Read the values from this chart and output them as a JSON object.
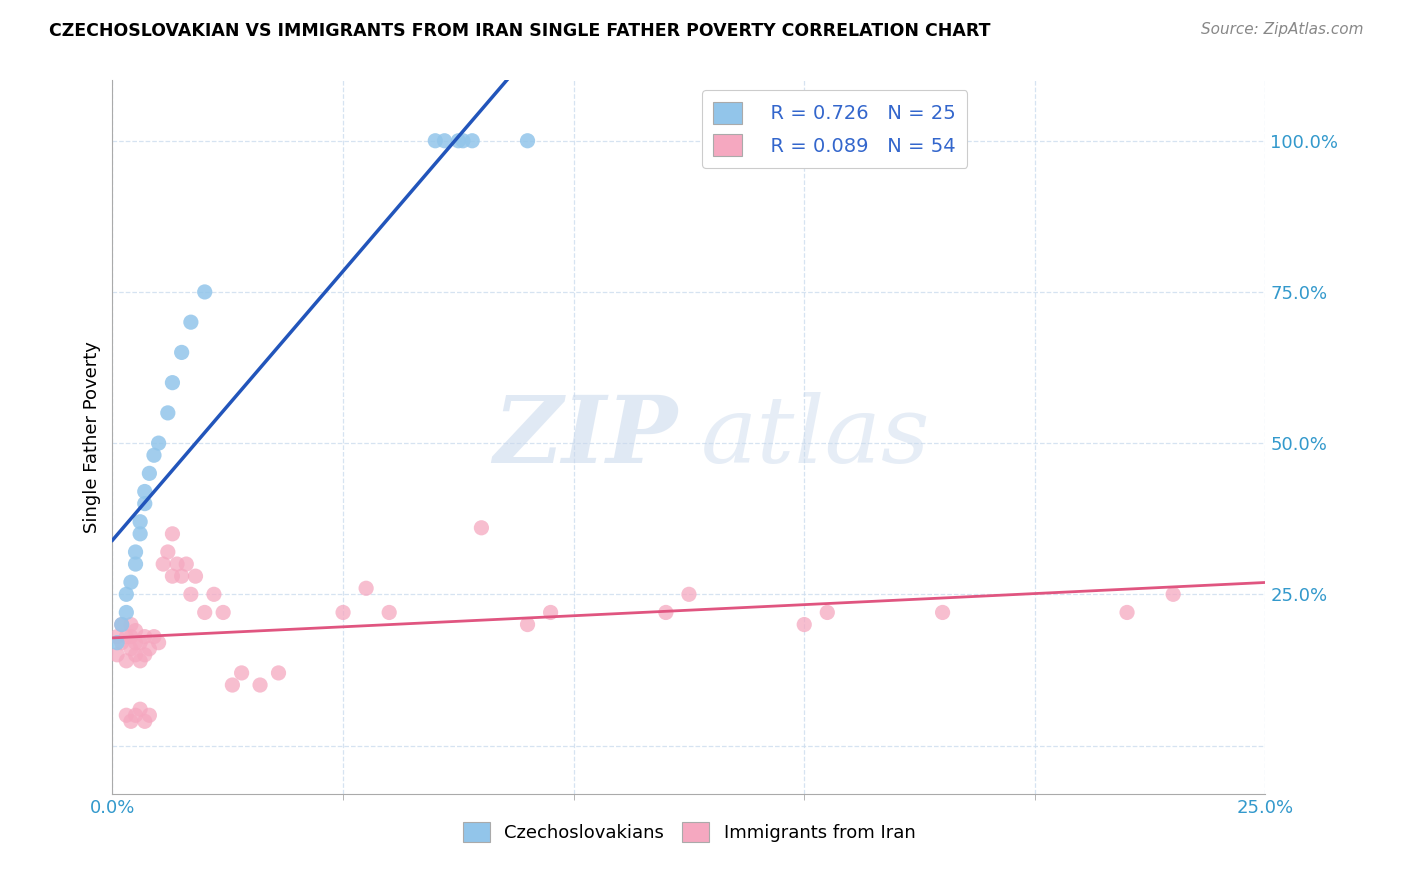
{
  "title": "CZECHOSLOVAKIAN VS IMMIGRANTS FROM IRAN SINGLE FATHER POVERTY CORRELATION CHART",
  "source": "Source: ZipAtlas.com",
  "ylabel": "Single Father Poverty",
  "ytick_labels": [
    "",
    "25.0%",
    "50.0%",
    "75.0%",
    "100.0%"
  ],
  "ytick_positions": [
    0.0,
    0.25,
    0.5,
    0.75,
    1.0
  ],
  "xrange": [
    0,
    0.25
  ],
  "yrange": [
    -0.08,
    1.1
  ],
  "legend1_R": "R = 0.726",
  "legend1_N": "N = 25",
  "legend2_R": "R = 0.089",
  "legend2_N": "N = 54",
  "blue_color": "#92C5EA",
  "pink_color": "#F5A8C0",
  "blue_line_color": "#2255BB",
  "pink_line_color": "#E05580",
  "watermark_zip": "ZIP",
  "watermark_atlas": "atlas",
  "blue_x": [
    0.001,
    0.002,
    0.003,
    0.003,
    0.004,
    0.005,
    0.005,
    0.006,
    0.006,
    0.007,
    0.007,
    0.008,
    0.009,
    0.01,
    0.012,
    0.013,
    0.015,
    0.017,
    0.02,
    0.07,
    0.072,
    0.075,
    0.076,
    0.078,
    0.09
  ],
  "blue_y": [
    0.17,
    0.2,
    0.22,
    0.25,
    0.27,
    0.3,
    0.32,
    0.35,
    0.37,
    0.4,
    0.42,
    0.45,
    0.48,
    0.5,
    0.55,
    0.6,
    0.65,
    0.7,
    0.75,
    1.0,
    1.0,
    1.0,
    1.0,
    1.0,
    1.0
  ],
  "pink_x": [
    0.001,
    0.001,
    0.002,
    0.002,
    0.003,
    0.003,
    0.004,
    0.004,
    0.004,
    0.005,
    0.005,
    0.005,
    0.006,
    0.006,
    0.007,
    0.007,
    0.008,
    0.009,
    0.01,
    0.011,
    0.012,
    0.013,
    0.013,
    0.014,
    0.015,
    0.016,
    0.017,
    0.018,
    0.02,
    0.022,
    0.024,
    0.026,
    0.028,
    0.032,
    0.036,
    0.05,
    0.055,
    0.06,
    0.08,
    0.09,
    0.095,
    0.12,
    0.125,
    0.15,
    0.155,
    0.18,
    0.22,
    0.23,
    0.003,
    0.004,
    0.005,
    0.006,
    0.007,
    0.008
  ],
  "pink_y": [
    0.15,
    0.18,
    0.17,
    0.2,
    0.14,
    0.18,
    0.16,
    0.18,
    0.2,
    0.15,
    0.17,
    0.19,
    0.14,
    0.17,
    0.15,
    0.18,
    0.16,
    0.18,
    0.17,
    0.3,
    0.32,
    0.28,
    0.35,
    0.3,
    0.28,
    0.3,
    0.25,
    0.28,
    0.22,
    0.25,
    0.22,
    0.1,
    0.12,
    0.1,
    0.12,
    0.22,
    0.26,
    0.22,
    0.36,
    0.2,
    0.22,
    0.22,
    0.25,
    0.2,
    0.22,
    0.22,
    0.22,
    0.25,
    0.05,
    0.04,
    0.05,
    0.06,
    0.04,
    0.05
  ]
}
